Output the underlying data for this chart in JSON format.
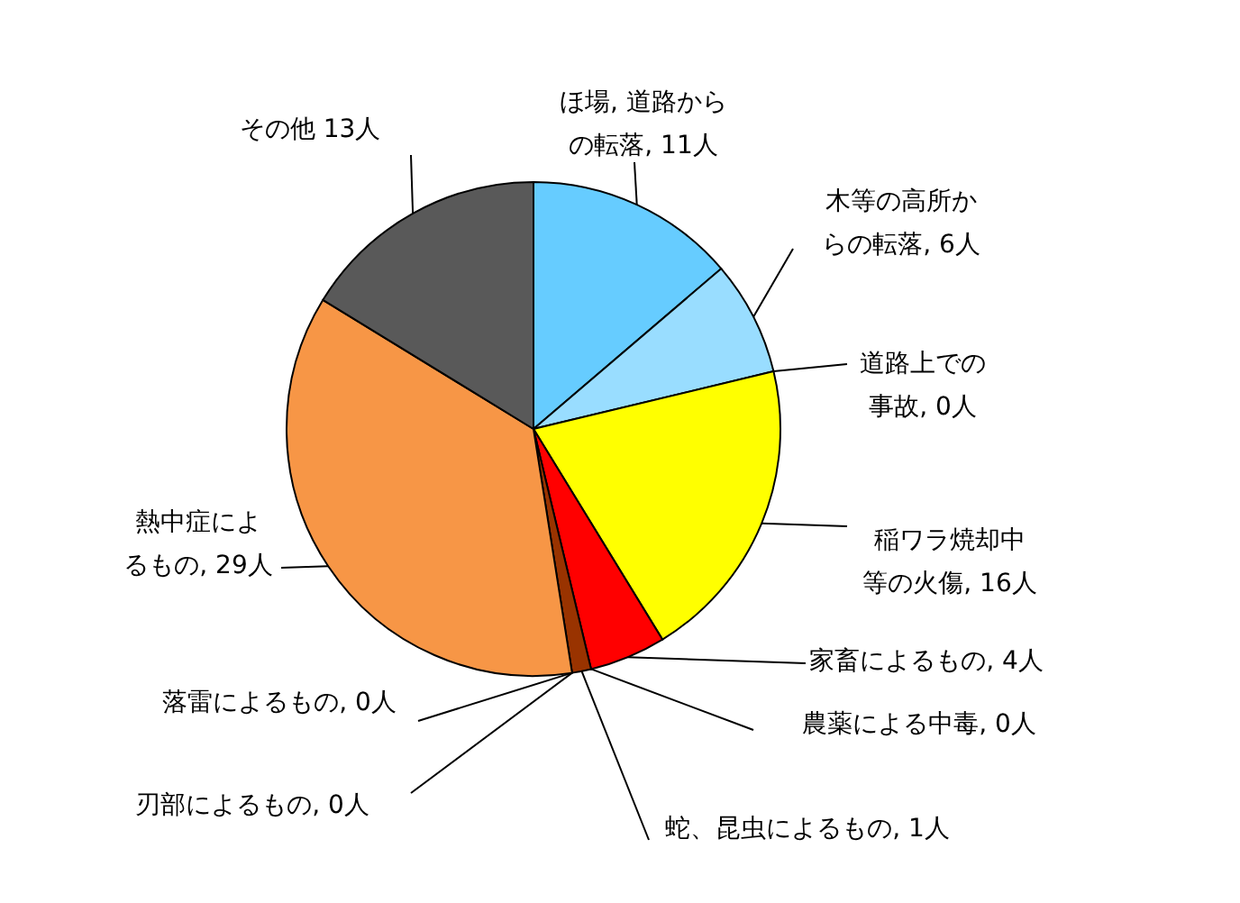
{
  "chart_data": {
    "type": "pie",
    "categories": [
      "ほ場, 道路からの転落, 11人",
      "木等の高所からの転落, 6人",
      "道路上での事故, 0人",
      "稲ワラ焼却中等の火傷, 16人",
      "家畜によるもの, 4人",
      "農薬による中毒, 0人",
      "蛇、昆虫によるもの, 1人",
      "刃部によるもの, 0人",
      "落雷によるもの, 0人",
      "熱中症によるもの, 29人",
      "その他 13人"
    ],
    "values": [
      11,
      6,
      0,
      16,
      4,
      0,
      1,
      0,
      0,
      29,
      13
    ],
    "colors": [
      "#66ccff",
      "#99ddff",
      "#ffffcc",
      "#ffff00",
      "#ff0000",
      "#ffcc99",
      "#993300",
      "#cccccc",
      "#999999",
      "#f79646",
      "#595959"
    ]
  }
}
